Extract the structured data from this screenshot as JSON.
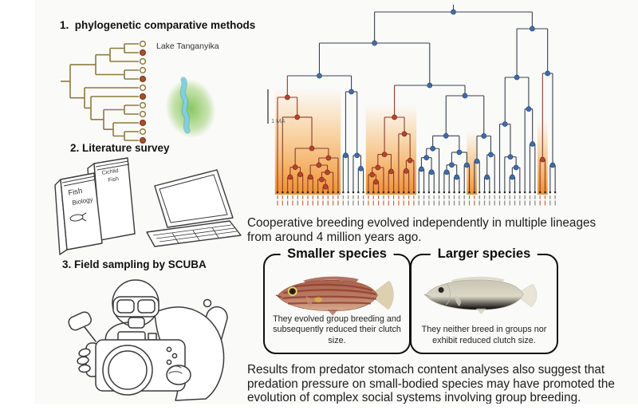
{
  "steps": {
    "step1": {
      "label": "1.  phylogenetic comparative methods",
      "lake_label": "Lake Tanganyika"
    },
    "step2": {
      "label": "2. Literature survey",
      "book1_line1": "Cichlid",
      "book1_line2": "Fish",
      "book2_line1": "Fish",
      "book2_line2": "Biology"
    },
    "step3": {
      "label": "3. Field sampling by SCUBA"
    }
  },
  "small_tree": {
    "tips": [
      "open",
      "filled",
      "open",
      "open",
      "filled",
      "open",
      "filled",
      "open",
      "open",
      "filled",
      "open",
      "filled"
    ]
  },
  "tree": {
    "scale_label": "1 MA",
    "tip_count": 56,
    "orange_ranges": [
      [
        0,
        12,
        108
      ],
      [
        18,
        27,
        128
      ],
      [
        38,
        39,
        162
      ],
      [
        52,
        53,
        148
      ]
    ],
    "red_ranges": [
      [
        0,
        12
      ],
      [
        18,
        27
      ],
      [
        52,
        53
      ]
    ]
  },
  "caption_top": "Cooperative breeding evolved independently in multiple lineages from around 4 million years ago.",
  "species_boxes": {
    "smaller": {
      "title": "Smaller species",
      "text": "They evolved group breeding and subsequently reduced their clutch size."
    },
    "larger": {
      "title": "Larger species",
      "text": "They neither breed in groups nor exhibit reduced clutch size."
    }
  },
  "caption_bottom": "Results from predator stomach content analyses also suggest that predation pressure on small-bodied species may have promoted the evolution of complex social systems involving group breeding.",
  "colors": {
    "node_blue": "#3f6cab",
    "node_red": "#b8442c",
    "edge_dark": "#39424d",
    "edge_red": "#8a3c2a",
    "orange_hi": "#ee8a28",
    "olive": "#8d7b3e",
    "tip_fill": "#a6502c"
  }
}
